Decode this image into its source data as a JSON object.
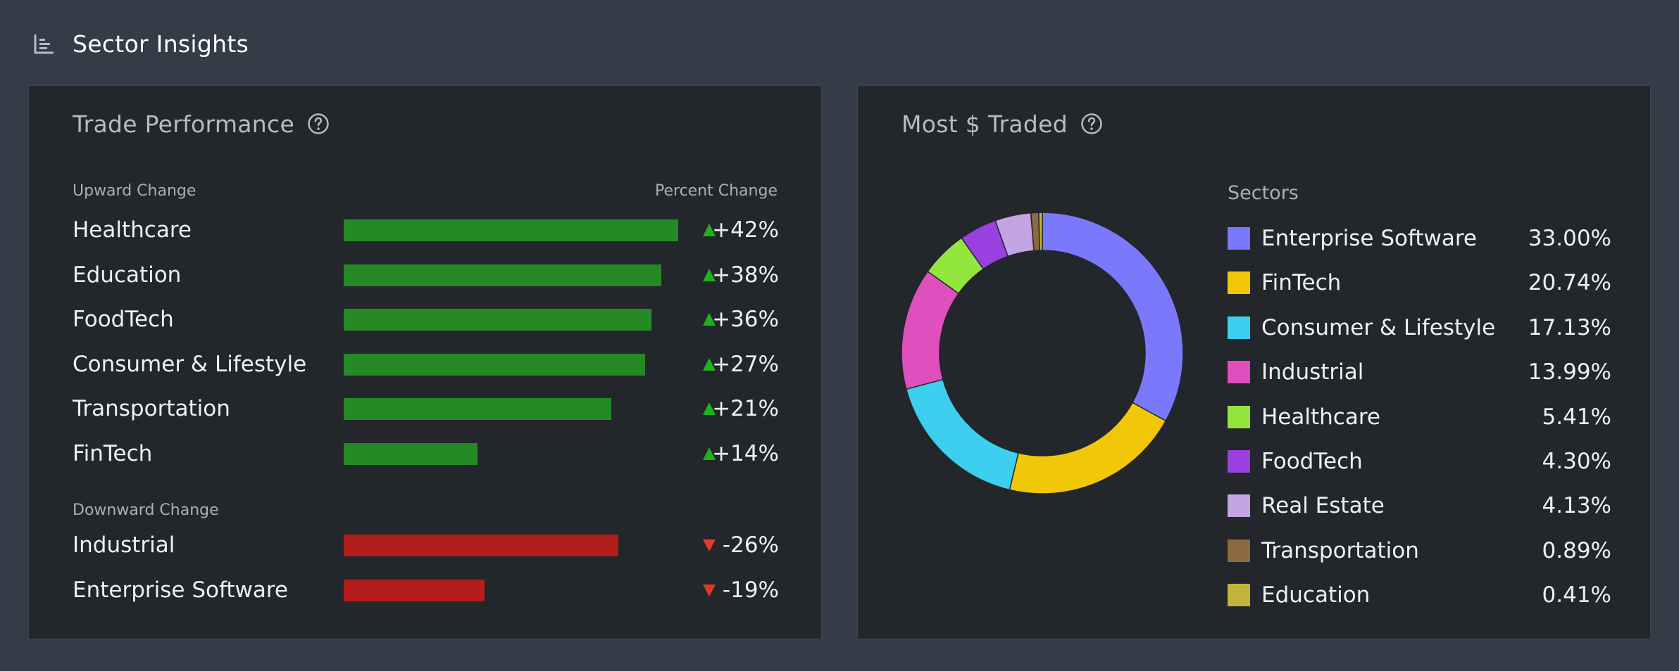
{
  "header": {
    "title": "Sector Insights",
    "icon": "bar-chart-icon"
  },
  "trade_performance": {
    "title": "Trade Performance",
    "help_icon": "help-circle-icon",
    "upward_label": "Upward Change",
    "downward_label": "Downward Change",
    "value_header": "Percent Change",
    "colors": {
      "up": "#258a25",
      "down": "#b31d1b",
      "up_arrow": "#1fb21f",
      "down_arrow": "#e03a2a"
    }
  },
  "most_traded": {
    "title": "Most $ Traded",
    "help_icon": "help-circle-icon",
    "legend_title": "Sectors"
  },
  "chart_data": [
    {
      "type": "bar",
      "orientation": "horizontal",
      "title": "Trade Performance",
      "groups": [
        {
          "name": "Upward Change",
          "categories": [
            "Healthcare",
            "Education",
            "FoodTech",
            "Consumer & Lifestyle",
            "Transportation",
            "FinTech"
          ],
          "values": [
            42,
            38,
            36,
            27,
            21,
            14
          ],
          "labels": [
            "+42%",
            "+38%",
            "+36%",
            "+27%",
            "+21%",
            "+14%"
          ],
          "bar_fraction": [
            1.0,
            0.95,
            0.92,
            0.9,
            0.8,
            0.4
          ]
        },
        {
          "name": "Downward Change",
          "categories": [
            "Industrial",
            "Enterprise Software"
          ],
          "values": [
            -26,
            -19
          ],
          "labels": [
            "-26%",
            "-19%"
          ],
          "bar_fraction": [
            0.82,
            0.42
          ]
        }
      ],
      "ylabel": "Percent Change"
    },
    {
      "type": "pie",
      "variant": "donut",
      "title": "Most $ Traded",
      "legend_title": "Sectors",
      "legend": "right",
      "slices": [
        {
          "name": "Enterprise Software",
          "value": 33.0,
          "label": "33.00%",
          "color": "#7b79fb"
        },
        {
          "name": "FinTech",
          "value": 20.74,
          "label": "20.74%",
          "color": "#f0c808"
        },
        {
          "name": "Consumer & Lifestyle",
          "value": 17.13,
          "label": "17.13%",
          "color": "#3ccfef"
        },
        {
          "name": "Industrial",
          "value": 13.99,
          "label": "13.99%",
          "color": "#df4fbd"
        },
        {
          "name": "Healthcare",
          "value": 5.41,
          "label": "5.41%",
          "color": "#92e63d"
        },
        {
          "name": "FoodTech",
          "value": 4.3,
          "label": "4.30%",
          "color": "#9a40e0"
        },
        {
          "name": "Real Estate",
          "value": 4.13,
          "label": "4.13%",
          "color": "#c4a5e3"
        },
        {
          "name": "Transportation",
          "value": 0.89,
          "label": "0.89%",
          "color": "#8a6a3e"
        },
        {
          "name": "Education",
          "value": 0.41,
          "label": "0.41%",
          "color": "#c4b23a"
        }
      ]
    }
  ]
}
